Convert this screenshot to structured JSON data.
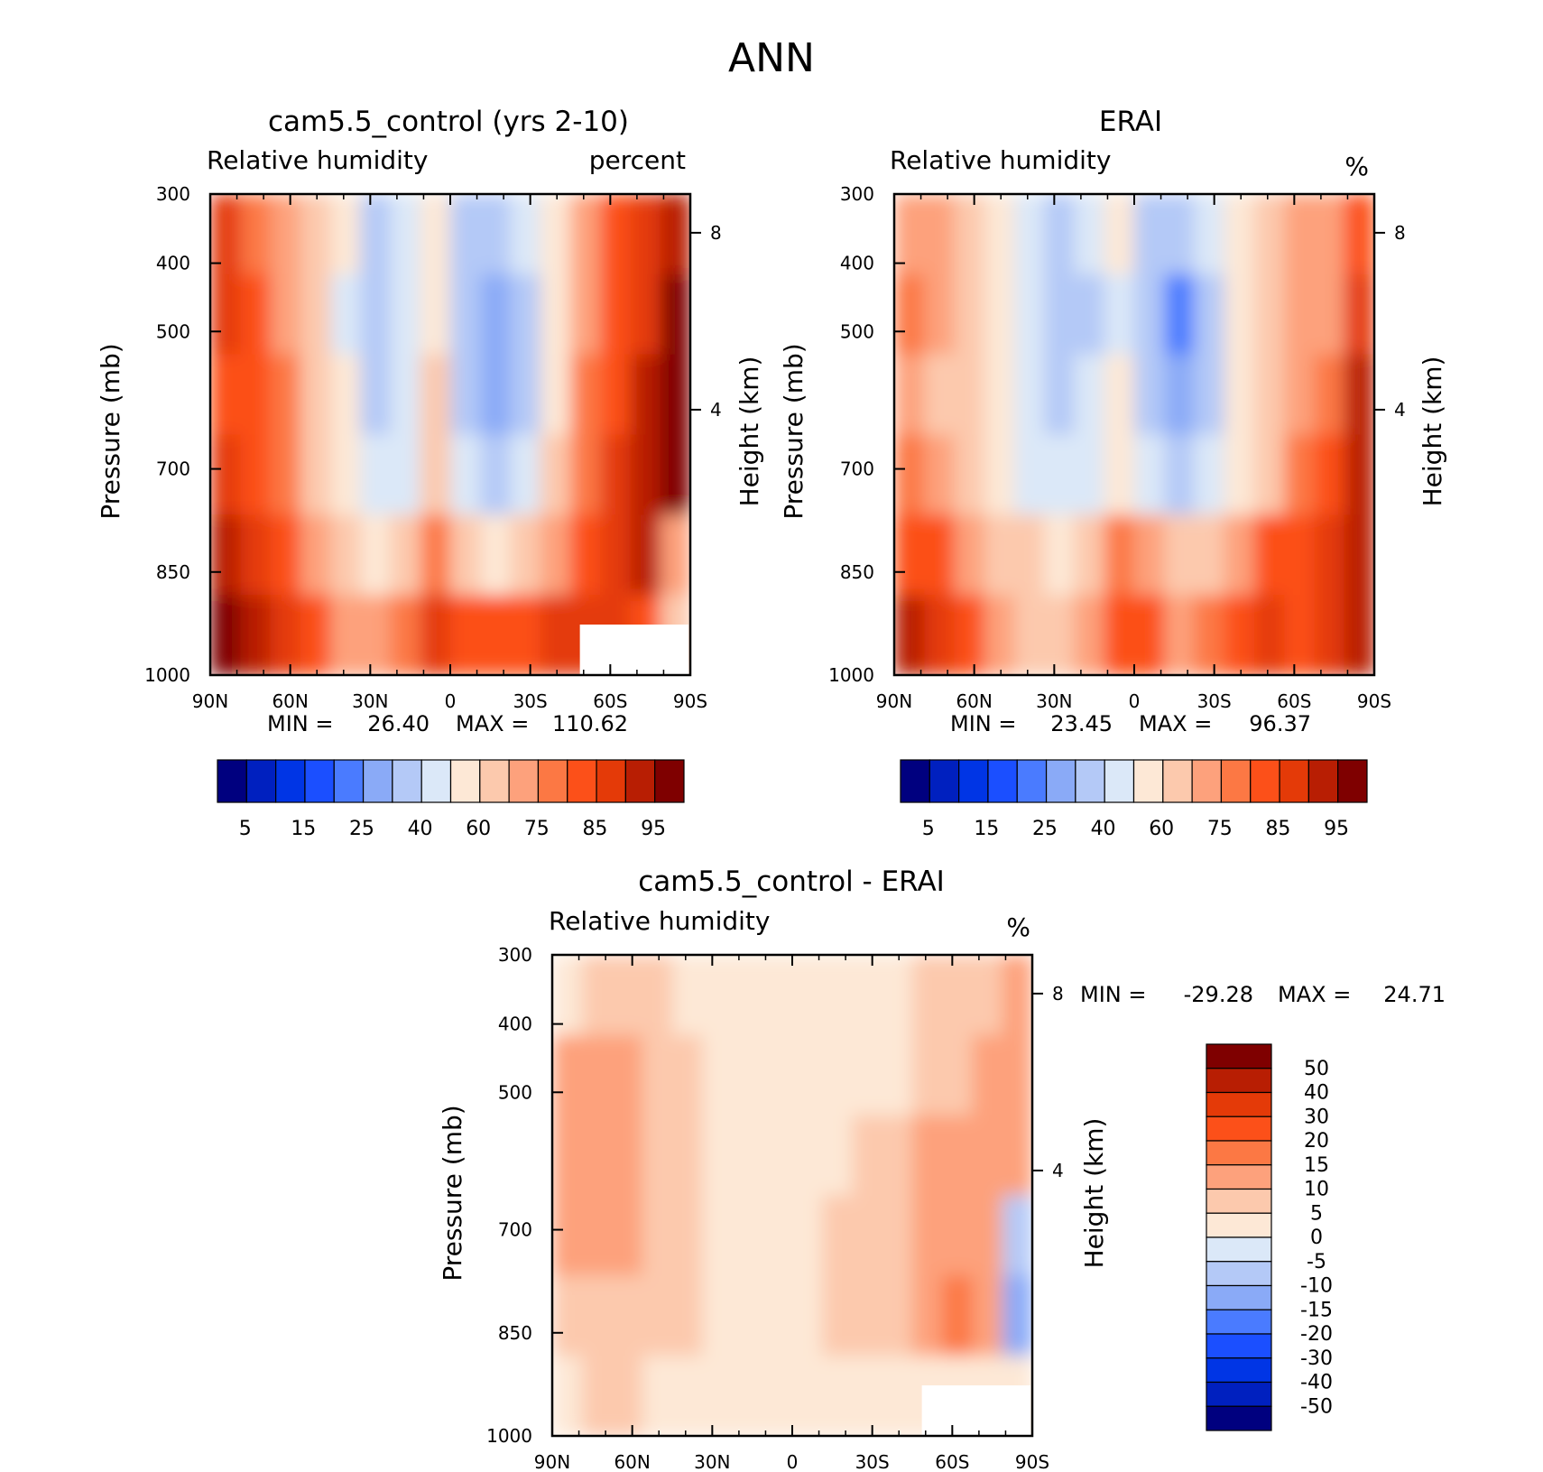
{
  "figure": {
    "title": "ANN"
  },
  "colors": {
    "rh_scale": [
      "#00007f",
      "#0020bf",
      "#0035e5",
      "#1b4fff",
      "#4a7bff",
      "#8aaaf7",
      "#b4c9f7",
      "#dbe8f8",
      "#fde8d6",
      "#fcc9ad",
      "#fda17c",
      "#fc7844",
      "#fc5019",
      "#e43a08",
      "#b81e03",
      "#7f0000"
    ],
    "diff_scale": [
      "#7f0000",
      "#b81e03",
      "#e43a08",
      "#fc5019",
      "#fc7844",
      "#fda17c",
      "#fcc9ad",
      "#fde8d6",
      "#dbe8f8",
      "#b4c9f7",
      "#8aaaf7",
      "#4a7bff",
      "#1b4fff",
      "#0035e5",
      "#0020bf",
      "#00007f"
    ]
  },
  "chart_data": [
    {
      "type": "heatmap",
      "panel": "model",
      "title": "cam5.5_control (yrs 2-10)",
      "variable": "Relative humidity",
      "units": "percent",
      "xlabel": "",
      "ylabel": "Pressure (mb)",
      "y2label": "Height (km)",
      "x_ticks": [
        "90N",
        "60N",
        "30N",
        "0",
        "30S",
        "60S",
        "90S"
      ],
      "y_ticks": [
        "300",
        "400",
        "500",
        "700",
        "850",
        "1000"
      ],
      "y2_ticks": [
        "8",
        "4"
      ],
      "min_label": "MIN =",
      "min": "26.40",
      "max_label": "MAX =",
      "max": "110.62",
      "colorbar_labels": [
        "5",
        "15",
        "25",
        "40",
        "60",
        "75",
        "85",
        "95"
      ],
      "levels": [
        5,
        10,
        15,
        20,
        25,
        30,
        40,
        50,
        60,
        70,
        75,
        80,
        85,
        90,
        95
      ],
      "field": [
        [
          88,
          78,
          74,
          60,
          50,
          36,
          42,
          58,
          38,
          32,
          40,
          56,
          72,
          80,
          85,
          94
        ],
        [
          86,
          80,
          74,
          62,
          48,
          32,
          40,
          56,
          34,
          26,
          36,
          56,
          74,
          82,
          88,
          96
        ],
        [
          84,
          80,
          75,
          64,
          50,
          34,
          42,
          60,
          36,
          28,
          38,
          58,
          76,
          84,
          90,
          97
        ],
        [
          86,
          82,
          78,
          68,
          56,
          40,
          48,
          64,
          44,
          34,
          44,
          62,
          78,
          86,
          92,
          96
        ],
        [
          90,
          86,
          82,
          74,
          64,
          54,
          62,
          76,
          68,
          56,
          62,
          74,
          84,
          88,
          90,
          70
        ],
        [
          96,
          92,
          88,
          80,
          74,
          70,
          78,
          86,
          84,
          80,
          82,
          86,
          88,
          86,
          80,
          60
        ]
      ]
    },
    {
      "type": "heatmap",
      "panel": "obs",
      "title": "ERAI",
      "variable": "Relative humidity",
      "units": "%",
      "xlabel": "",
      "ylabel": "Pressure (mb)",
      "y2label": "Height (km)",
      "x_ticks": [
        "90N",
        "60N",
        "30N",
        "0",
        "30S",
        "60S",
        "90S"
      ],
      "y_ticks": [
        "300",
        "400",
        "500",
        "700",
        "850",
        "1000"
      ],
      "y2_ticks": [
        "8",
        "4"
      ],
      "min_label": "MIN =",
      "min": "23.45",
      "max_label": "MAX =",
      "max": "96.37",
      "colorbar_labels": [
        "5",
        "15",
        "25",
        "40",
        "60",
        "75",
        "85",
        "95"
      ],
      "levels": [
        5,
        10,
        15,
        20,
        25,
        30,
        40,
        50,
        60,
        70,
        75,
        80,
        85,
        90,
        95
      ],
      "field": [
        [
          74,
          70,
          64,
          56,
          42,
          34,
          40,
          50,
          38,
          30,
          40,
          54,
          64,
          70,
          74,
          84
        ],
        [
          76,
          70,
          62,
          54,
          40,
          30,
          38,
          48,
          34,
          24,
          34,
          52,
          62,
          70,
          74,
          86
        ],
        [
          74,
          68,
          62,
          54,
          40,
          32,
          40,
          50,
          36,
          26,
          36,
          54,
          64,
          72,
          78,
          90
        ],
        [
          76,
          72,
          66,
          58,
          46,
          40,
          46,
          56,
          44,
          34,
          42,
          58,
          68,
          76,
          82,
          92
        ],
        [
          84,
          80,
          74,
          68,
          60,
          58,
          64,
          76,
          70,
          62,
          66,
          74,
          80,
          82,
          86,
          92
        ],
        [
          92,
          86,
          80,
          74,
          68,
          68,
          74,
          84,
          80,
          74,
          78,
          84,
          86,
          84,
          86,
          94
        ]
      ]
    },
    {
      "type": "heatmap",
      "panel": "difference",
      "title": "cam5.5_control - ERAI",
      "variable": "Relative humidity",
      "units": "%",
      "xlabel": "",
      "ylabel": "Pressure (mb)",
      "y2label": "Height (km)",
      "x_ticks": [
        "90N",
        "60N",
        "30N",
        "0",
        "30S",
        "60S",
        "90S"
      ],
      "y_ticks": [
        "300",
        "400",
        "500",
        "700",
        "850",
        "1000"
      ],
      "y2_ticks": [
        "8",
        "4"
      ],
      "min_label": "MIN =",
      "min": "-29.28",
      "max_label": "MAX =",
      "max": "24.71",
      "colorbar_labels": [
        "50",
        "40",
        "30",
        "20",
        "15",
        "10",
        "5",
        "0",
        "-5",
        "-10",
        "-15",
        "-20",
        "-30",
        "-40",
        "-50"
      ],
      "levels": [
        -50,
        -40,
        -30,
        -20,
        -15,
        -10,
        -5,
        0,
        5,
        10,
        15,
        20,
        30,
        40,
        50
      ],
      "field": [
        [
          4,
          6,
          8,
          6,
          4,
          2,
          2,
          2,
          2,
          2,
          4,
          4,
          6,
          6,
          8,
          14
        ],
        [
          10,
          10,
          12,
          8,
          6,
          4,
          2,
          2,
          2,
          2,
          4,
          4,
          8,
          8,
          10,
          12
        ],
        [
          10,
          12,
          12,
          8,
          6,
          4,
          2,
          2,
          3,
          4,
          6,
          6,
          10,
          12,
          12,
          10
        ],
        [
          10,
          10,
          10,
          8,
          6,
          4,
          2,
          0,
          3,
          6,
          6,
          8,
          10,
          14,
          12,
          -6
        ],
        [
          6,
          6,
          8,
          6,
          6,
          4,
          2,
          2,
          4,
          6,
          6,
          8,
          12,
          16,
          14,
          -12
        ],
        [
          4,
          6,
          6,
          4,
          2,
          2,
          2,
          2,
          2,
          4,
          4,
          2,
          4,
          4,
          2,
          0
        ]
      ]
    }
  ]
}
